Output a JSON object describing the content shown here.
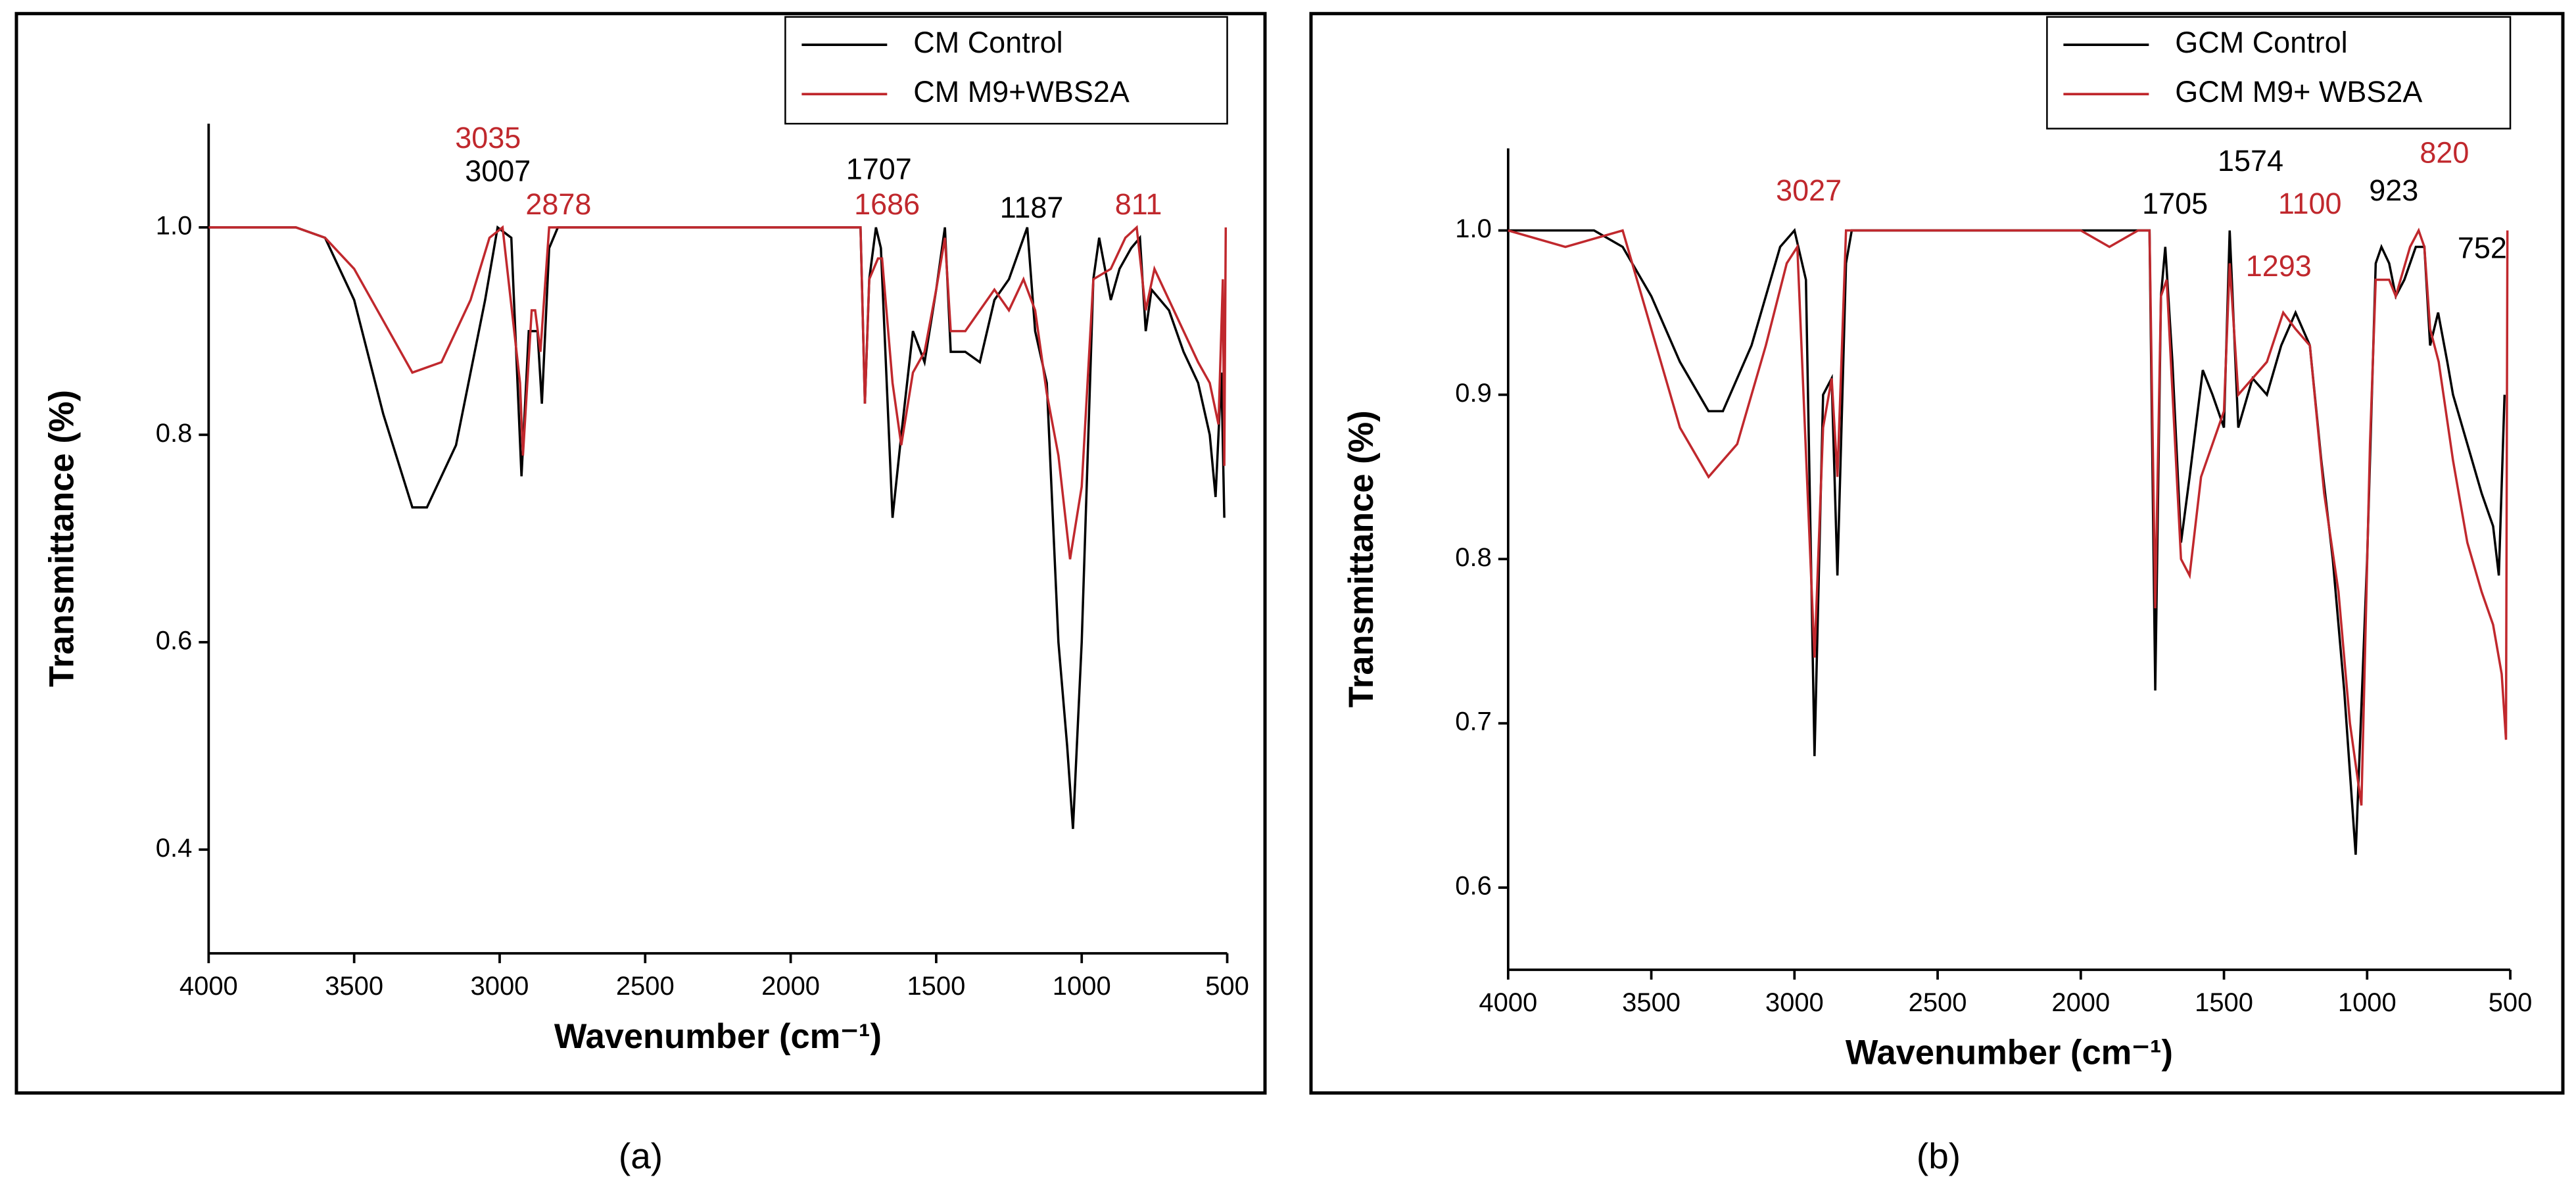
{
  "chart_data": [
    {
      "type": "line",
      "caption": "(a)",
      "xlabel": "Wavenumber (cm⁻¹)",
      "ylabel": "Transmittance (%)",
      "xlim": [
        4000,
        500
      ],
      "xticks": [
        4000,
        3500,
        3000,
        2500,
        2000,
        1500,
        1000,
        500
      ],
      "ylim": [
        0.3,
        1.1
      ],
      "yticks": [
        0.4,
        0.6,
        0.8,
        {
          "value": 1,
          "label": "1.0"
        }
      ],
      "legend": "upper right",
      "series": [
        {
          "name": "CM Control",
          "color": "#000000",
          "x": [
            4000,
            3700,
            3600,
            3500,
            3400,
            3300,
            3250,
            3150,
            3050,
            3007,
            2960,
            2925,
            2900,
            2870,
            2855,
            2830,
            2800,
            2000,
            1800,
            1760,
            1745,
            1730,
            1707,
            1690,
            1650,
            1620,
            1580,
            1540,
            1500,
            1470,
            1450,
            1400,
            1350,
            1300,
            1250,
            1187,
            1160,
            1120,
            1080,
            1050,
            1030,
            1000,
            960,
            940,
            900,
            870,
            830,
            800,
            780,
            760,
            700,
            650,
            600,
            560,
            540,
            520,
            510
          ],
          "values": [
            1.0,
            1.0,
            0.99,
            0.93,
            0.82,
            0.73,
            0.73,
            0.79,
            0.93,
            1.0,
            0.99,
            0.76,
            0.9,
            0.9,
            0.83,
            0.98,
            1.0,
            1.0,
            1.0,
            1.0,
            0.83,
            0.95,
            1.0,
            0.98,
            0.72,
            0.8,
            0.9,
            0.87,
            0.94,
            1.0,
            0.88,
            0.88,
            0.87,
            0.93,
            0.95,
            1.0,
            0.9,
            0.85,
            0.6,
            0.5,
            0.42,
            0.6,
            0.95,
            0.99,
            0.93,
            0.96,
            0.98,
            0.99,
            0.9,
            0.94,
            0.92,
            0.88,
            0.85,
            0.8,
            0.74,
            0.86,
            0.72
          ]
        },
        {
          "name": "CM M9+WBS2A",
          "color": "#c0282d",
          "x": [
            4000,
            3700,
            3600,
            3500,
            3400,
            3300,
            3200,
            3100,
            3035,
            2990,
            2930,
            2920,
            2890,
            2878,
            2860,
            2830,
            2000,
            1800,
            1760,
            1745,
            1730,
            1700,
            1686,
            1650,
            1620,
            1580,
            1540,
            1500,
            1470,
            1450,
            1400,
            1350,
            1300,
            1250,
            1200,
            1160,
            1120,
            1080,
            1040,
            1000,
            960,
            900,
            850,
            811,
            780,
            750,
            700,
            650,
            600,
            560,
            530,
            515,
            510,
            505
          ],
          "values": [
            1.0,
            1.0,
            0.99,
            0.96,
            0.91,
            0.86,
            0.87,
            0.93,
            0.99,
            1.0,
            0.85,
            0.78,
            0.92,
            0.92,
            0.88,
            1.0,
            1.0,
            1.0,
            1.0,
            0.83,
            0.95,
            0.97,
            0.97,
            0.85,
            0.79,
            0.86,
            0.88,
            0.94,
            0.99,
            0.9,
            0.9,
            0.92,
            0.94,
            0.92,
            0.95,
            0.92,
            0.84,
            0.78,
            0.68,
            0.75,
            0.95,
            0.96,
            0.99,
            1.0,
            0.92,
            0.96,
            0.93,
            0.9,
            0.87,
            0.85,
            0.81,
            0.95,
            0.77,
            1.0
          ]
        }
      ],
      "annotations": [
        {
          "text": "3035",
          "x": 3040,
          "y": 1.084,
          "color": "#c0282d"
        },
        {
          "text": "3007",
          "x": 3006,
          "y": 1.052,
          "color": "#000000"
        },
        {
          "text": "2878",
          "x": 2798,
          "y": 1.02,
          "color": "#c0282d"
        },
        {
          "text": "1707",
          "x": 1697,
          "y": 1.054,
          "color": "#000000"
        },
        {
          "text": "1686",
          "x": 1669,
          "y": 1.02,
          "color": "#c0282d"
        },
        {
          "text": "1187",
          "x": 1172,
          "y": 1.017,
          "color": "#000000"
        },
        {
          "text": "811",
          "x": 805,
          "y": 1.02,
          "color": "#c0282d"
        }
      ]
    },
    {
      "type": "line",
      "caption": "(b)",
      "xlabel": "Wavenumber (cm⁻¹)",
      "ylabel": "Transmittance (%)",
      "xlim": [
        4000,
        500
      ],
      "xticks": [
        4000,
        3500,
        3000,
        2500,
        2000,
        1500,
        1000,
        500
      ],
      "ylim": [
        0.55,
        1.05
      ],
      "yticks": [
        0.6,
        0.7,
        0.8,
        0.9,
        {
          "value": 1,
          "label": "1.0"
        }
      ],
      "legend": "upper right",
      "series": [
        {
          "name": "GCM Control",
          "color": "#000000",
          "x": [
            4000,
            3700,
            3600,
            3500,
            3400,
            3300,
            3250,
            3150,
            3050,
            3000,
            2960,
            2930,
            2900,
            2870,
            2850,
            2820,
            2800,
            2000,
            1800,
            1760,
            1740,
            1720,
            1705,
            1680,
            1650,
            1620,
            1574,
            1540,
            1500,
            1480,
            1450,
            1400,
            1350,
            1300,
            1250,
            1200,
            1160,
            1120,
            1080,
            1040,
            1000,
            970,
            950,
            923,
            900,
            870,
            830,
            800,
            780,
            752,
            720,
            700,
            650,
            600,
            560,
            540,
            520
          ],
          "values": [
            1.0,
            1.0,
            0.99,
            0.96,
            0.92,
            0.89,
            0.89,
            0.93,
            0.99,
            1.0,
            0.97,
            0.68,
            0.9,
            0.91,
            0.79,
            0.98,
            1.0,
            1.0,
            1.0,
            1.0,
            0.72,
            0.96,
            0.99,
            0.92,
            0.81,
            0.85,
            0.915,
            0.9,
            0.88,
            1.0,
            0.88,
            0.91,
            0.9,
            0.93,
            0.95,
            0.93,
            0.86,
            0.8,
            0.72,
            0.62,
            0.8,
            0.98,
            0.99,
            0.98,
            0.96,
            0.97,
            0.99,
            0.99,
            0.93,
            0.95,
            0.92,
            0.9,
            0.87,
            0.84,
            0.82,
            0.79,
            0.9
          ]
        },
        {
          "name": "GCM M9+ WBS2A",
          "color": "#c0282d",
          "x": [
            4000,
            3800,
            3600,
            3500,
            3400,
            3300,
            3200,
            3100,
            3027,
            2990,
            2930,
            2900,
            2870,
            2850,
            2820,
            2000,
            1900,
            1800,
            1760,
            1740,
            1720,
            1700,
            1650,
            1620,
            1580,
            1500,
            1480,
            1450,
            1400,
            1350,
            1293,
            1250,
            1200,
            1150,
            1100,
            1060,
            1020,
            990,
            970,
            923,
            900,
            850,
            820,
            800,
            780,
            750,
            700,
            650,
            600,
            560,
            530,
            515,
            510
          ],
          "values": [
            1.0,
            0.99,
            1.0,
            0.94,
            0.88,
            0.85,
            0.87,
            0.93,
            0.98,
            0.99,
            0.74,
            0.88,
            0.91,
            0.85,
            1.0,
            1.0,
            0.99,
            1.0,
            1.0,
            0.77,
            0.96,
            0.97,
            0.8,
            0.79,
            0.85,
            0.89,
            0.98,
            0.9,
            0.91,
            0.92,
            0.95,
            0.94,
            0.93,
            0.84,
            0.78,
            0.7,
            0.65,
            0.87,
            0.97,
            0.97,
            0.96,
            0.99,
            1.0,
            0.99,
            0.94,
            0.92,
            0.86,
            0.81,
            0.78,
            0.76,
            0.73,
            0.69,
            1.0
          ]
        }
      ],
      "annotations": [
        {
          "text": "3027",
          "x": 2950,
          "y": 1.023,
          "color": "#c0282d"
        },
        {
          "text": "1705",
          "x": 1671,
          "y": 1.015,
          "color": "#000000"
        },
        {
          "text": "1574",
          "x": 1407,
          "y": 1.041,
          "color": "#000000"
        },
        {
          "text": "1100",
          "x": 1200,
          "y": 1.015,
          "color": "#c0282d"
        },
        {
          "text": "1293",
          "x": 1309,
          "y": 0.977,
          "color": "#c0282d"
        },
        {
          "text": "923",
          "x": 907,
          "y": 1.023,
          "color": "#000000"
        },
        {
          "text": "820",
          "x": 730,
          "y": 1.046,
          "color": "#c0282d"
        },
        {
          "text": "752",
          "x": 598,
          "y": 0.988,
          "color": "#000000"
        }
      ]
    }
  ]
}
